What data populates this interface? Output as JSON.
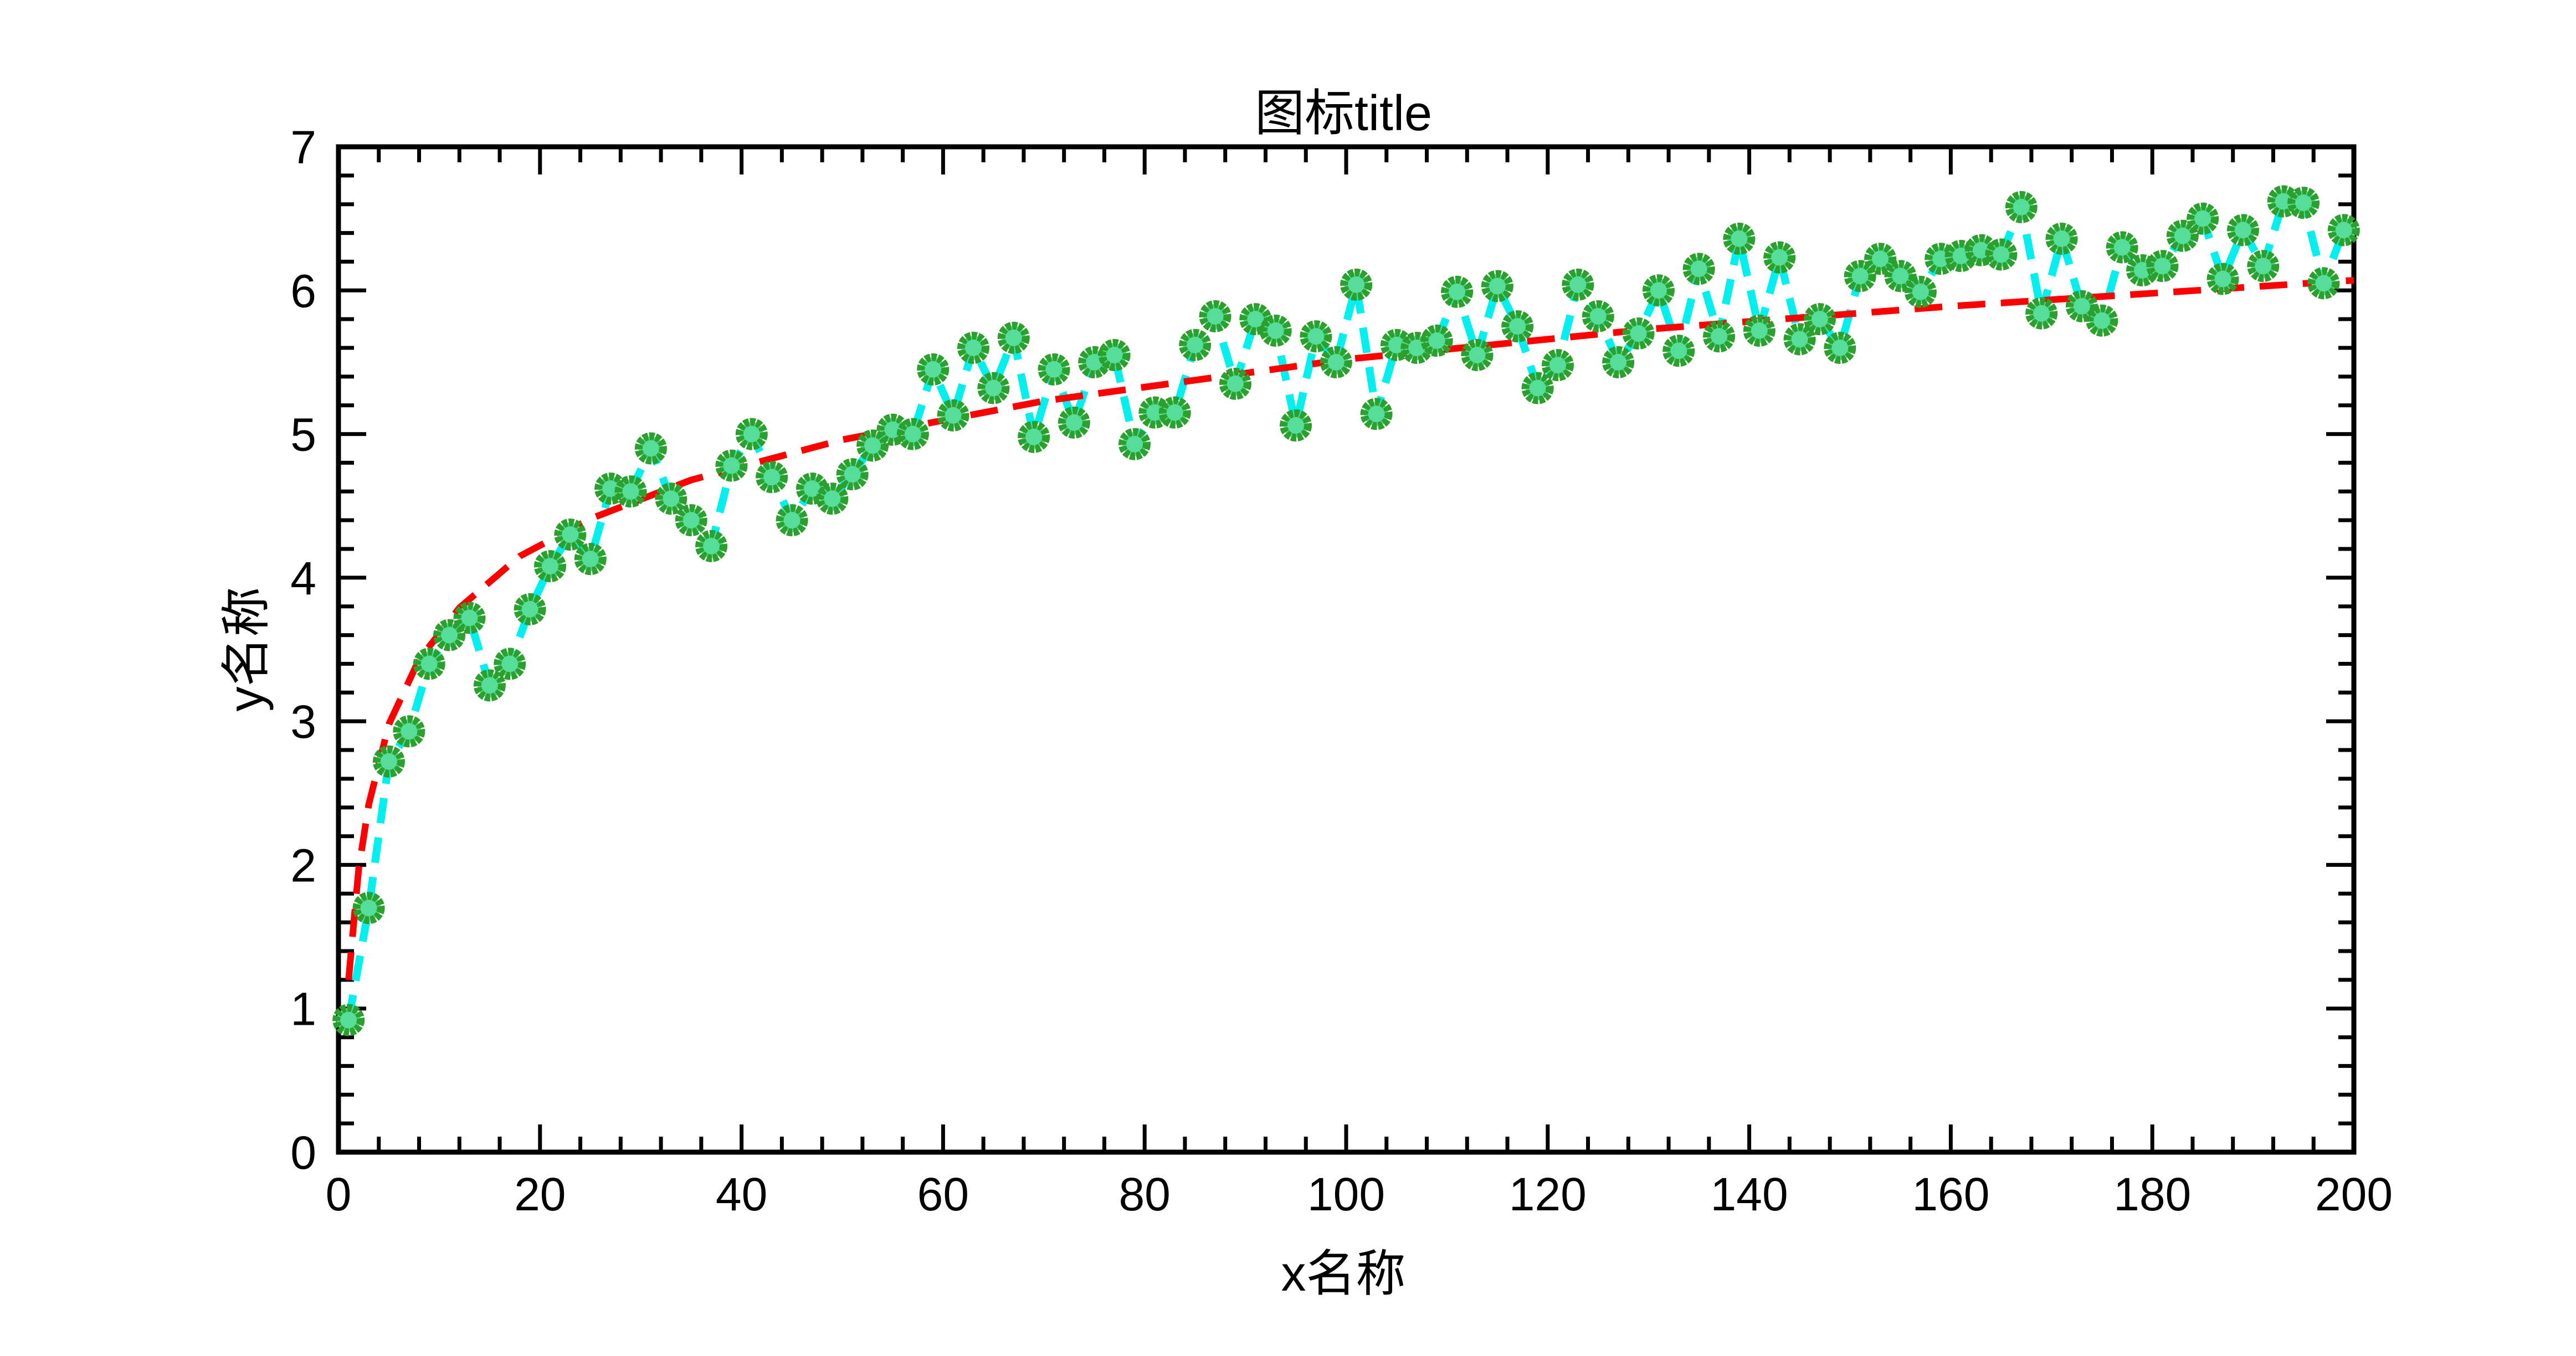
{
  "chart_data": {
    "type": "line",
    "title": "图标title",
    "xlabel": "x名称",
    "ylabel": "y名称",
    "xlim": [
      0,
      200
    ],
    "ylim": [
      0,
      7
    ],
    "xticks": [
      "0",
      "20",
      "40",
      "60",
      "80",
      "100",
      "120",
      "140",
      "160",
      "180",
      "200"
    ],
    "yticks": [
      "0",
      "1",
      "2",
      "3",
      "4",
      "5",
      "6",
      "7"
    ],
    "grid": false,
    "legend": "none",
    "series": [
      {
        "style": "dashed line with circle markers",
        "line_color": "#00f0f0",
        "marker_edge_color": "#2ca02c",
        "marker_face_color": "#55dd99",
        "x": [
          1,
          3,
          5,
          7,
          9,
          11,
          13,
          15,
          17,
          19,
          21,
          23,
          25,
          27,
          29,
          31,
          33,
          35,
          37,
          39,
          41,
          43,
          45,
          47,
          49,
          51,
          53,
          55,
          57,
          59,
          61,
          63,
          65,
          67,
          69,
          71,
          73,
          75,
          77,
          79,
          81,
          83,
          85,
          87,
          89,
          91,
          93,
          95,
          97,
          99,
          101,
          103,
          105,
          107,
          109,
          111,
          113,
          115,
          117,
          119,
          121,
          123,
          125,
          127,
          129,
          131,
          133,
          135,
          137,
          139,
          141,
          143,
          145,
          147,
          149,
          151,
          153,
          155,
          157,
          159,
          161,
          163,
          165,
          167,
          169,
          171,
          173,
          175,
          177,
          179,
          181,
          183,
          185,
          187,
          189,
          191,
          193,
          195,
          197,
          199
        ],
        "y": [
          0.92,
          1.7,
          2.72,
          2.93,
          3.4,
          3.6,
          3.72,
          3.25,
          3.4,
          3.78,
          4.08,
          4.3,
          4.13,
          4.62,
          4.6,
          4.9,
          4.55,
          4.4,
          4.22,
          4.78,
          5.0,
          4.7,
          4.4,
          4.62,
          4.55,
          4.72,
          4.92,
          5.03,
          5.0,
          5.45,
          5.13,
          5.6,
          5.32,
          5.67,
          4.98,
          5.45,
          5.08,
          5.5,
          5.55,
          4.93,
          5.15,
          5.15,
          5.62,
          5.82,
          5.35,
          5.8,
          5.72,
          5.06,
          5.68,
          5.5,
          6.04,
          5.14,
          5.62,
          5.6,
          5.65,
          5.99,
          5.55,
          6.03,
          5.75,
          5.32,
          5.48,
          6.04,
          5.82,
          5.5,
          5.7,
          6.0,
          5.58,
          6.15,
          5.68,
          6.36,
          5.72,
          6.23,
          5.66,
          5.8,
          5.6,
          6.1,
          6.22,
          6.1,
          5.99,
          6.22,
          6.24,
          6.28,
          6.25,
          6.58,
          5.84,
          6.36,
          5.89,
          5.79,
          6.3,
          6.14,
          6.17,
          6.38,
          6.5,
          6.08,
          6.42,
          6.17,
          6.62,
          6.61,
          6.05,
          6.42
        ]
      },
      {
        "style": "dashed fit curve",
        "line_color": "#ff0000",
        "x": [
          1,
          2,
          3,
          5,
          8,
          12,
          18,
          25,
          35,
          50,
          70,
          100,
          130,
          160,
          200
        ],
        "y": [
          1.2,
          1.97,
          2.42,
          2.98,
          3.43,
          3.79,
          4.15,
          4.41,
          4.68,
          4.96,
          5.23,
          5.52,
          5.73,
          5.89,
          6.07
        ]
      }
    ]
  }
}
